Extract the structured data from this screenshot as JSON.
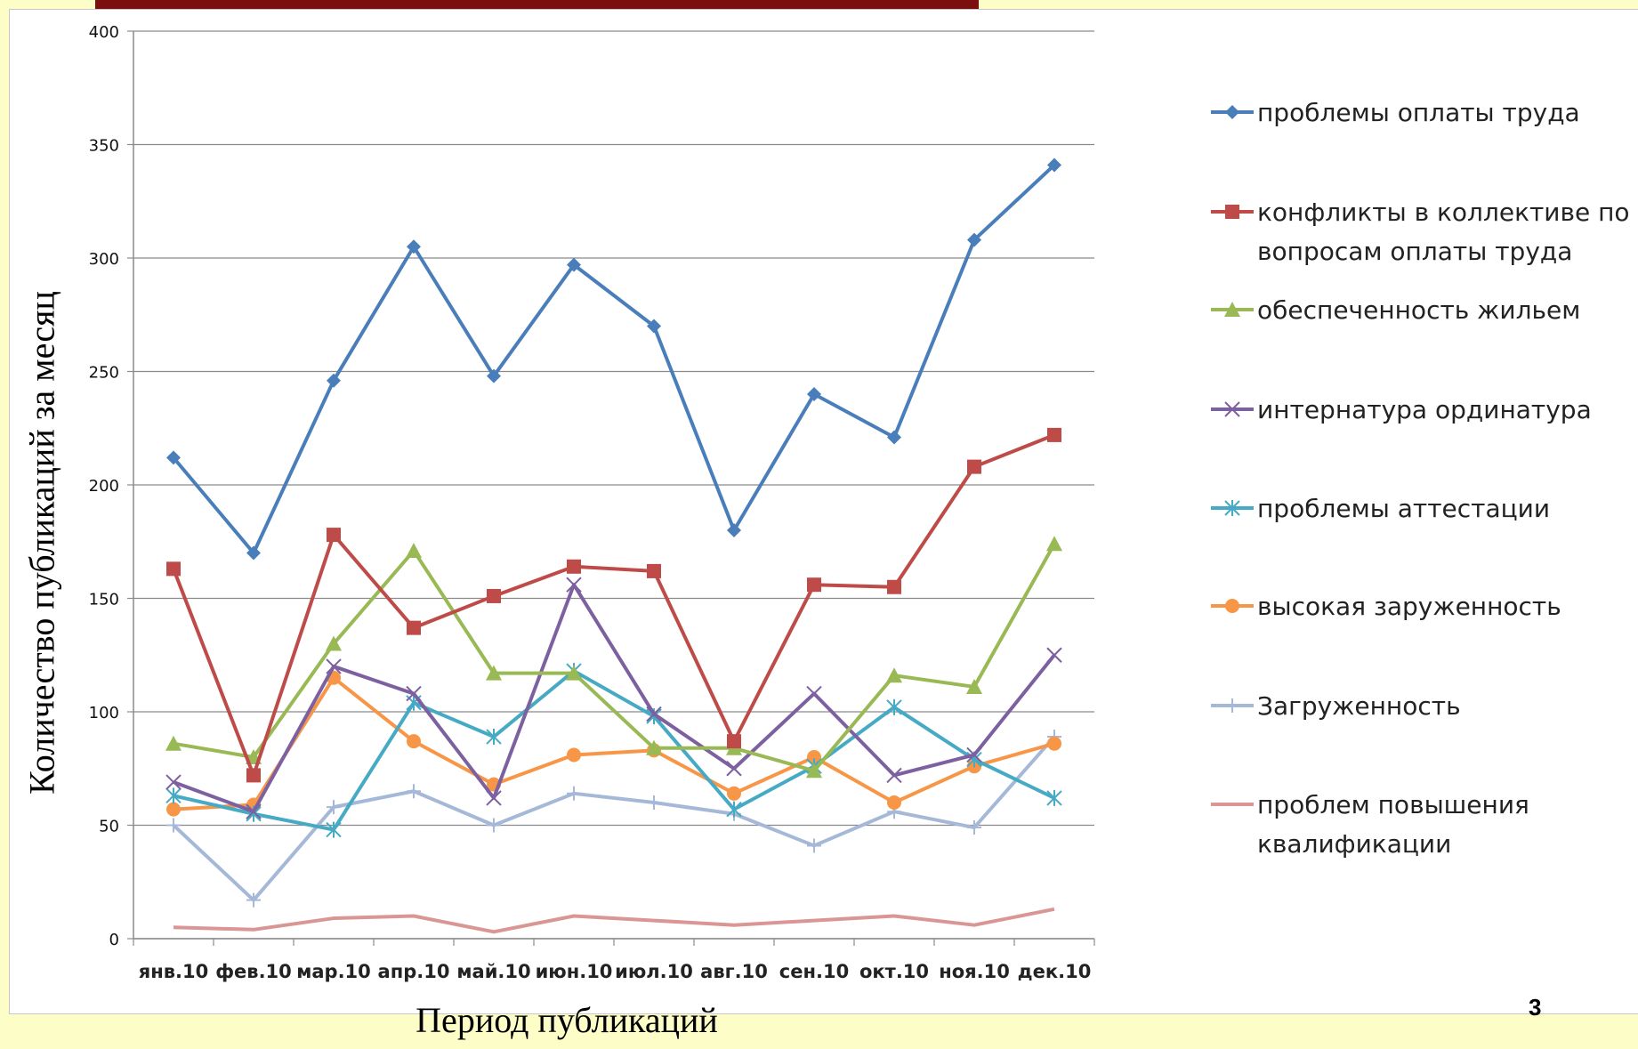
{
  "slide": {
    "number": "3"
  },
  "chart_data": {
    "type": "line",
    "title": "",
    "xlabel": "Период публикаций",
    "ylabel": "Количество публикаций за  месяц",
    "ylim": [
      0,
      400
    ],
    "yticks": [
      "0",
      "50",
      "100",
      "150",
      "200",
      "250",
      "300",
      "350",
      "400"
    ],
    "grid": true,
    "legend_position": "right",
    "categories": [
      "янв.10",
      "фев.10",
      "мар.10",
      "апр.10",
      "май.10",
      "июн.10",
      "июл.10",
      "авг.10",
      "сен.10",
      "окт.10",
      "ноя.10",
      "дек.10"
    ],
    "series": [
      {
        "name": "проблемы оплаты труда",
        "color": "#4a7ebb",
        "marker": "diamond",
        "values": [
          212,
          170,
          246,
          305,
          248,
          297,
          270,
          180,
          240,
          221,
          308,
          341
        ]
      },
      {
        "name": "конфликты в коллективе по вопросам оплаты труда",
        "color": "#be4b48",
        "marker": "square",
        "values": [
          163,
          72,
          178,
          137,
          151,
          164,
          162,
          87,
          156,
          155,
          208,
          222
        ]
      },
      {
        "name": "обеспеченность  жильем",
        "color": "#98b954",
        "marker": "triangle",
        "values": [
          86,
          80,
          130,
          171,
          117,
          117,
          84,
          84,
          74,
          116,
          111,
          174
        ]
      },
      {
        "name": "интернатура  ординатура",
        "color": "#7d60a0",
        "marker": "x",
        "values": [
          69,
          56,
          120,
          108,
          62,
          156,
          99,
          75,
          108,
          72,
          81,
          125
        ]
      },
      {
        "name": "проблемы аттестации",
        "color": "#46aac5",
        "marker": "star",
        "values": [
          63,
          55,
          48,
          104,
          89,
          118,
          98,
          57,
          76,
          102,
          79,
          62
        ]
      },
      {
        "name": "высокая заруженность",
        "color": "#f79646",
        "marker": "circle",
        "values": [
          57,
          59,
          115,
          87,
          68,
          81,
          83,
          64,
          80,
          60,
          76,
          86
        ]
      },
      {
        "name": "Загруженность",
        "color": "#a5b8d8",
        "marker": "plus",
        "values": [
          50,
          17,
          58,
          65,
          50,
          64,
          60,
          55,
          41,
          56,
          49,
          89
        ]
      },
      {
        "name": "проблем повышения квалификации",
        "color": "#d99694",
        "marker": "none",
        "values": [
          5,
          4,
          9,
          10,
          3,
          10,
          8,
          6,
          8,
          10,
          6,
          13
        ]
      }
    ]
  }
}
